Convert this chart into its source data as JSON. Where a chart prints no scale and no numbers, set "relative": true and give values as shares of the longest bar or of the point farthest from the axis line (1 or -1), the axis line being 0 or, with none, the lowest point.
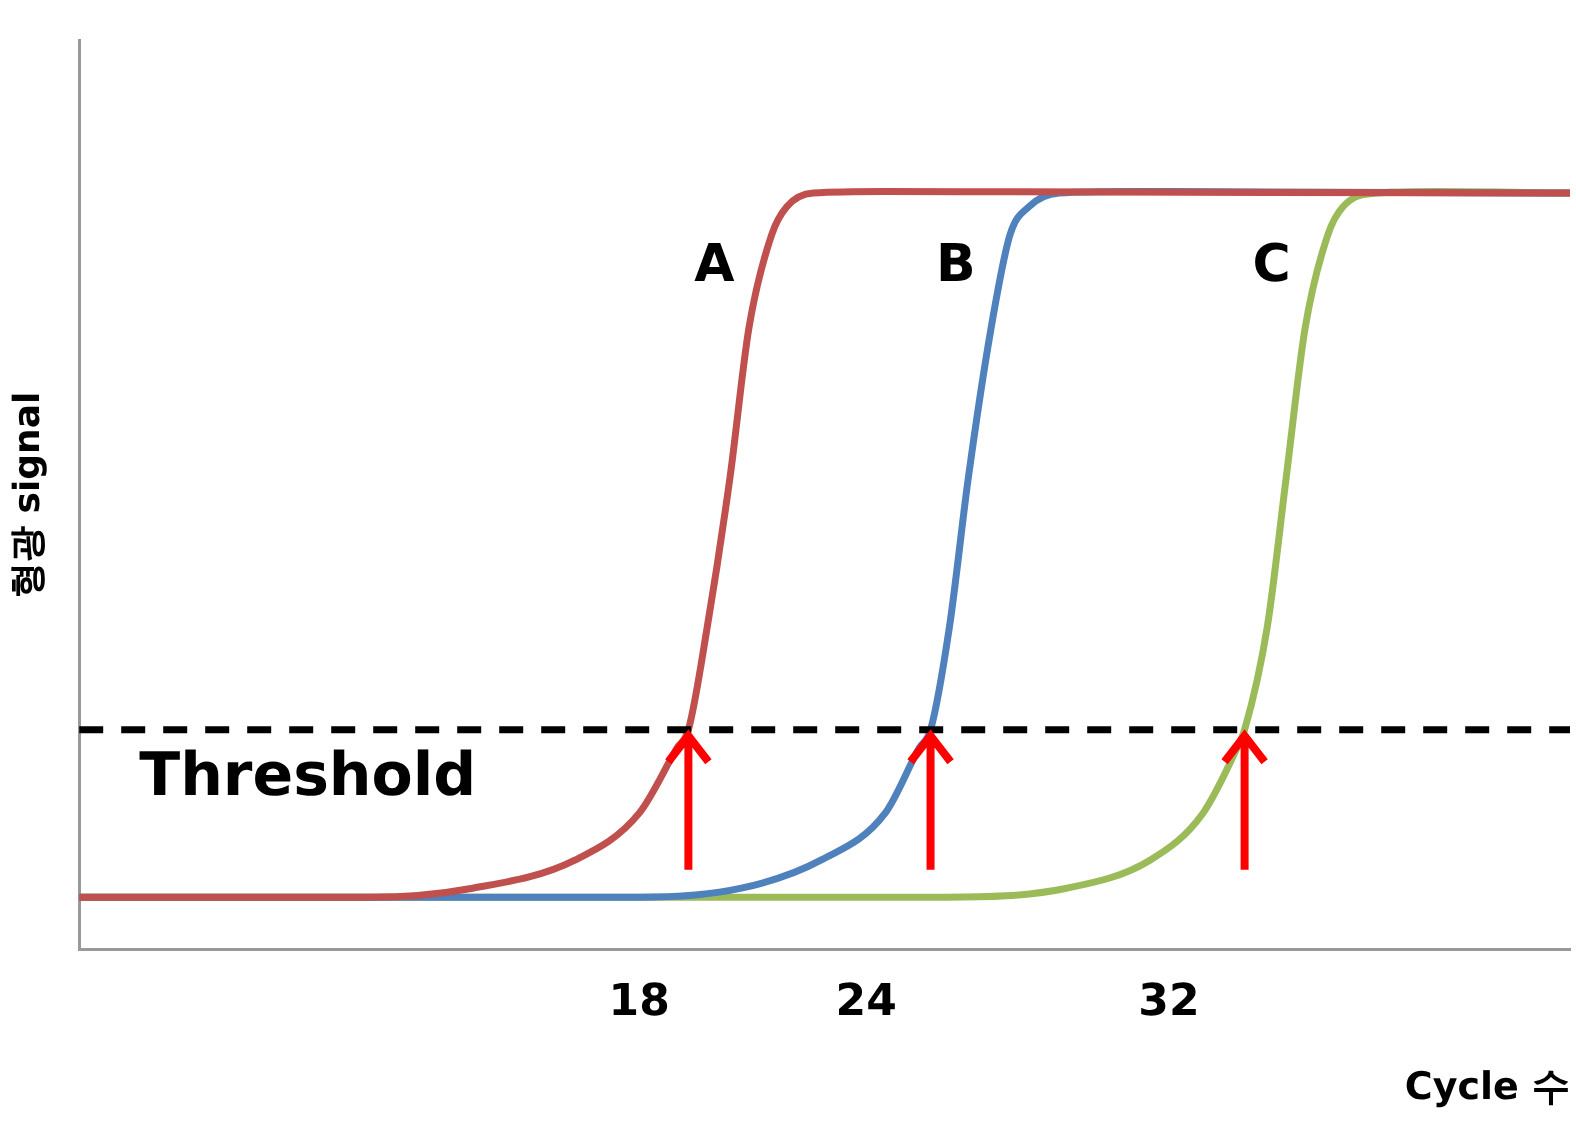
{
  "chart_data": {
    "type": "line",
    "xlabel": "Cycle 수",
    "ylabel": "형광 signal",
    "relative": true,
    "xlim": [
      3.2,
      42.6
    ],
    "xticks": [
      18,
      24,
      32
    ],
    "grid": false,
    "legend": false,
    "marker": "none",
    "line_style": "solid",
    "series": [
      {
        "name": "A",
        "color": "#c0504d",
        "x": [
          3.2,
          10.9,
          13.6,
          16.3,
          18.0,
          19.0,
          19.3,
          19.8,
          20.4,
          20.9,
          21.5,
          21.9,
          22.6,
          24.5,
          42.6
        ],
        "values": [
          0.069,
          0.069,
          0.081,
          0.118,
          0.18,
          0.266,
          0.29,
          0.426,
          0.623,
          0.82,
          0.943,
          0.98,
          0.998,
          1,
          0.998
        ]
      },
      {
        "name": "B",
        "color": "#4f81bd",
        "x": [
          3.2,
          18.0,
          20.7,
          22.8,
          24.5,
          25.4,
          25.7,
          26.2,
          26.7,
          27.3,
          27.8,
          28.3,
          29.1,
          31.0,
          42.6
        ],
        "values": [
          0.069,
          0.069,
          0.081,
          0.118,
          0.18,
          0.266,
          0.29,
          0.426,
          0.623,
          0.82,
          0.943,
          0.98,
          0.998,
          1,
          0.998
        ]
      },
      {
        "name": "C",
        "color": "#9bbb59",
        "x": [
          3.2,
          26.1,
          29.3,
          31.5,
          32.9,
          33.8,
          34.0,
          34.6,
          35.1,
          35.6,
          36.2,
          36.6,
          37.5,
          39.1,
          42.6
        ],
        "values": [
          0.069,
          0.069,
          0.081,
          0.118,
          0.18,
          0.266,
          0.29,
          0.426,
          0.623,
          0.82,
          0.943,
          0.98,
          0.998,
          1,
          0.998
        ]
      }
    ],
    "ref_lines": [
      {
        "axis": "y",
        "value": 0.29,
        "label": "Threshold",
        "color": "#000000",
        "line_style": "dashed"
      }
    ]
  }
}
